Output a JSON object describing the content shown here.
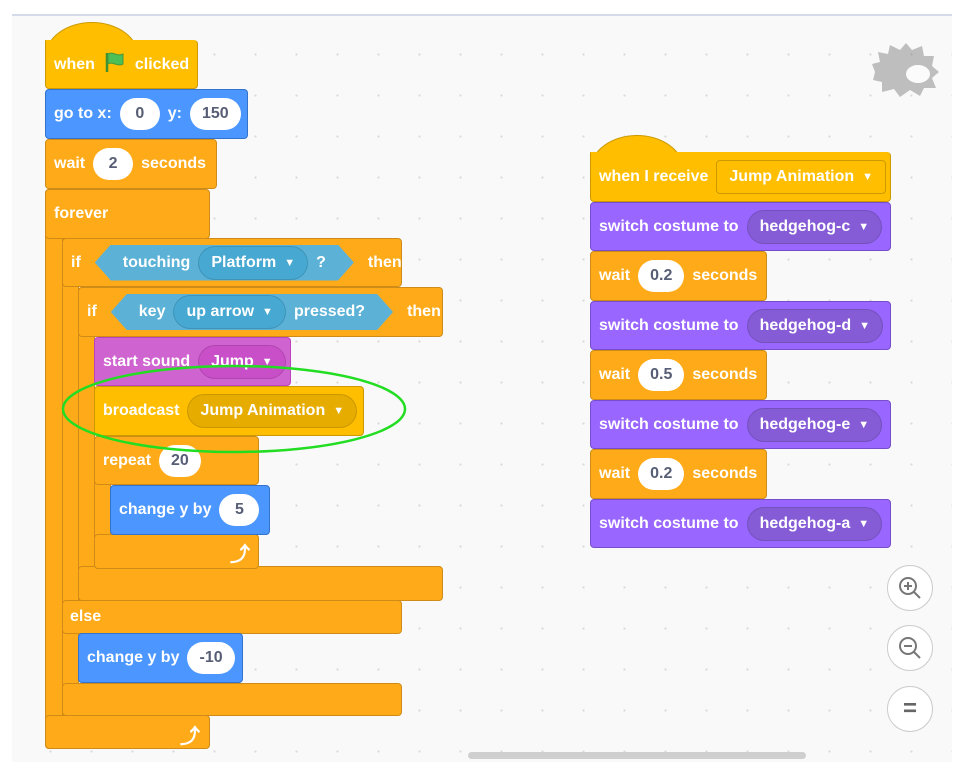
{
  "script1": {
    "hat": {
      "pre": "when",
      "icon": "green-flag-icon",
      "post": "clicked"
    },
    "goto": {
      "label_x": "go to x:",
      "x": "0",
      "label_y": "y:",
      "y": "150"
    },
    "wait": {
      "label": "wait",
      "value": "2",
      "unit": "seconds"
    },
    "forever": {
      "label": "forever"
    },
    "if1": {
      "label": "if",
      "cond": "touching",
      "target": "Platform",
      "q": "?",
      "then": "then",
      "else": "else"
    },
    "if2": {
      "label": "if",
      "cond_pre": "key",
      "key": "up arrow",
      "cond_post": "pressed?",
      "then": "then"
    },
    "sound": {
      "label": "start sound",
      "value": "Jump"
    },
    "broadcast": {
      "label": "broadcast",
      "value": "Jump Animation"
    },
    "repeat": {
      "label": "repeat",
      "value": "20"
    },
    "change1": {
      "label": "change y by",
      "value": "5"
    },
    "change2": {
      "label": "change y by",
      "value": "-10"
    }
  },
  "script2": {
    "hat": {
      "label": "when I receive",
      "value": "Jump Animation"
    },
    "blocks": [
      {
        "label": "switch costume to",
        "value": "hedgehog-c"
      },
      {
        "label": "wait",
        "value": "0.2",
        "unit": "seconds"
      },
      {
        "label": "switch costume to",
        "value": "hedgehog-d"
      },
      {
        "label": "wait",
        "value": "0.5",
        "unit": "seconds"
      },
      {
        "label": "switch costume to",
        "value": "hedgehog-e"
      },
      {
        "label": "wait",
        "value": "0.2",
        "unit": "seconds"
      },
      {
        "label": "switch costume to",
        "value": "hedgehog-a"
      }
    ]
  },
  "zoom_controls": {
    "zoom_in": "+",
    "zoom_out": "−",
    "reset": "="
  },
  "highlight_color": "#22dd22"
}
